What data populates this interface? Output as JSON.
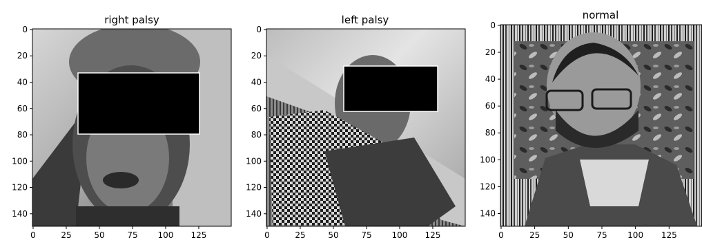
{
  "panels": [
    {
      "title": "right palsy",
      "y_ticks": [
        "0",
        "20",
        "40",
        "60",
        "80",
        "100",
        "120",
        "140"
      ],
      "x_ticks": [
        "0",
        "25",
        "50",
        "75",
        "100",
        "125"
      ],
      "censor_box": true
    },
    {
      "title": "left palsy",
      "y_ticks": [
        "0",
        "20",
        "40",
        "60",
        "80",
        "100",
        "120",
        "140"
      ],
      "x_ticks": [
        "0",
        "25",
        "50",
        "75",
        "100",
        "125"
      ],
      "censor_box": true
    },
    {
      "title": "normal",
      "y_ticks": [
        "0",
        "20",
        "40",
        "60",
        "80",
        "100",
        "120",
        "140"
      ],
      "x_ticks": [
        "0",
        "25",
        "50",
        "75",
        "100",
        "125"
      ],
      "censor_box": false
    }
  ],
  "colors": {
    "censor_fill": "#000000",
    "censor_edge": "#ffffff"
  }
}
